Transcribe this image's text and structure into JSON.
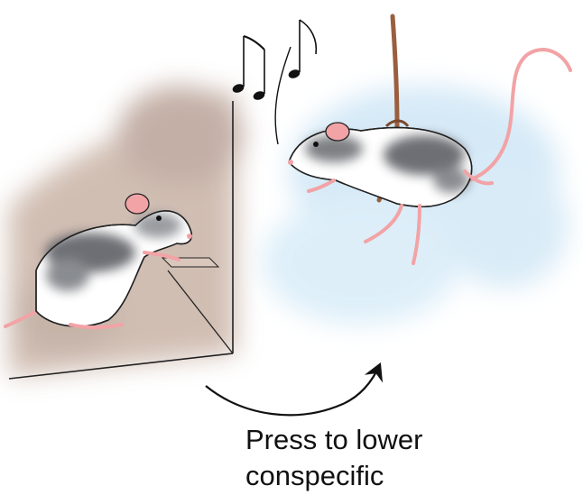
{
  "caption": {
    "line1": "Press to lower",
    "line2": "conspecific"
  },
  "colors": {
    "chamber_wash": "#c9b7ac",
    "sky_wash": "#cfe6f6",
    "rat_dark": "#5e6166",
    "rat_mid": "#9a9ca0",
    "rat_pink": "#f2a3a6",
    "rope": "#9a5f3e",
    "ink": "#111111"
  },
  "icons": [
    "music-notes-icon",
    "curved-arrow-icon",
    "rope-icon"
  ]
}
